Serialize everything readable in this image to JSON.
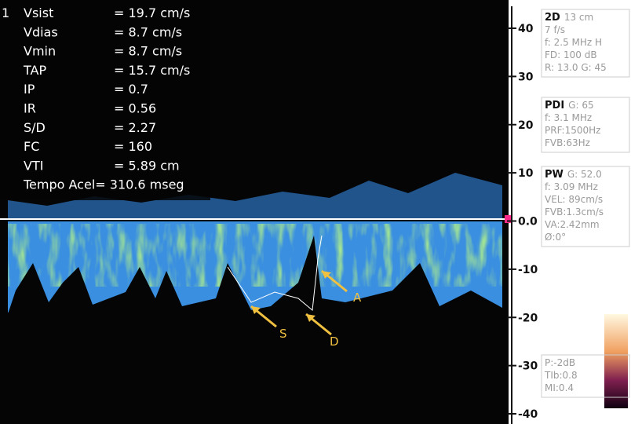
{
  "index_label": "1",
  "measurements": [
    {
      "label": "Vsist",
      "value": "= 19.7 cm/s"
    },
    {
      "label": "Vdias",
      "value": "= 8.7 cm/s"
    },
    {
      "label": "Vmin",
      "value": "= 8.7 cm/s"
    },
    {
      "label": "TAP",
      "value": "= 15.7 cm/s"
    },
    {
      "label": "IP",
      "value": "= 0.7"
    },
    {
      "label": "IR",
      "value": "= 0.56"
    },
    {
      "label": "S/D",
      "value": "= 2.27"
    },
    {
      "label": "FC",
      "value": "= 160"
    },
    {
      "label": "VTI",
      "value": "= 5.89 cm"
    }
  ],
  "accel_time": "Tempo Acel= 310.6 mseg",
  "scale": {
    "ticks": [
      "40",
      "30",
      "20",
      "10",
      "0.0",
      "-10",
      "-20",
      "-30",
      "-40"
    ]
  },
  "markers": [
    {
      "label": "A"
    },
    {
      "label": "S"
    },
    {
      "label": "D"
    }
  ],
  "panel": {
    "groups": [
      {
        "label": "2D",
        "lines": [
          "13 cm",
          "7 f/s",
          "f: 2.5 MHz H",
          "FD: 100 dB",
          "R: 13.0 G: 45"
        ]
      },
      {
        "label": "PDI",
        "lines": [
          "G: 65",
          "f: 3.1 MHz",
          "PRF:1500Hz",
          "FVB:63Hz"
        ]
      },
      {
        "label": "PW",
        "lines": [
          "G: 52.0",
          "f: 3.09 MHz",
          "VEL: 89cm/s",
          "FVB:1.3cm/s",
          "VA:2.42mm",
          "Ø:0°"
        ]
      },
      {
        "label": null,
        "lines": [
          "P:-2dB",
          "TIb:0.8",
          "MI:0.4"
        ]
      }
    ]
  }
}
